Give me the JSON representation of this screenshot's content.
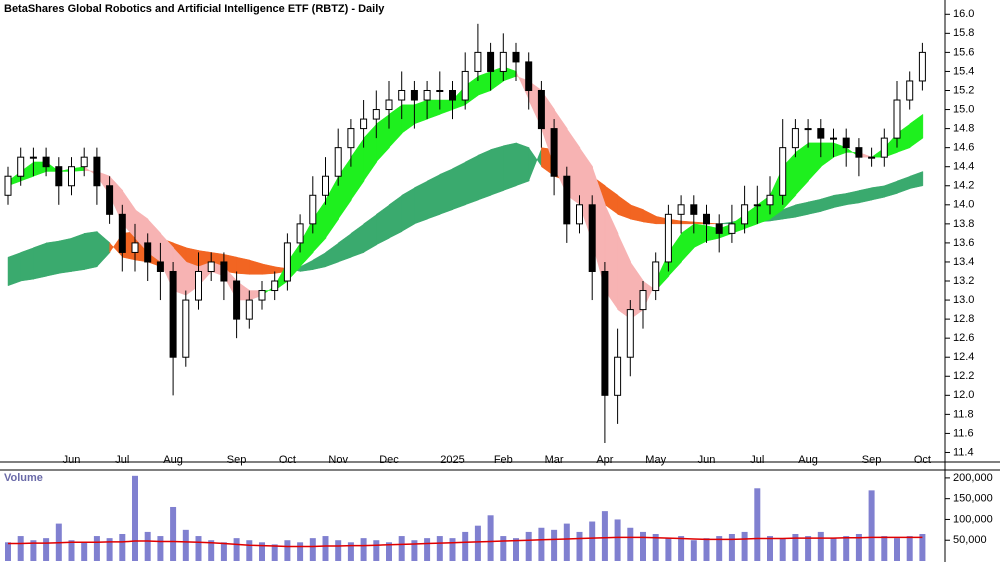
{
  "chart_data": {
    "type": "candlestick",
    "title": "BetaShares Global Robotics and Artificial Intelligence ETF (RBTZ) - Daily",
    "categories": [
      null,
      null,
      null,
      null,
      null,
      "Jun",
      null,
      null,
      null,
      "Jul",
      null,
      null,
      null,
      "Aug",
      null,
      null,
      null,
      null,
      "Sep",
      null,
      null,
      null,
      "Oct",
      null,
      null,
      null,
      "Nov",
      null,
      null,
      null,
      "Dec",
      null,
      null,
      null,
      null,
      "2025",
      null,
      null,
      null,
      "Feb",
      null,
      null,
      null,
      "Mar",
      null,
      null,
      null,
      "Apr",
      null,
      null,
      null,
      "May",
      null,
      null,
      null,
      "Jun",
      null,
      null,
      null,
      "Jul",
      null,
      null,
      null,
      "Aug",
      null,
      null,
      null,
      null,
      "Sep",
      null,
      null,
      null,
      "Oct"
    ],
    "open": [
      14.1,
      14.3,
      14.5,
      14.5,
      14.4,
      14.2,
      14.4,
      14.5,
      14.2,
      13.9,
      13.5,
      13.6,
      13.4,
      13.3,
      12.4,
      13.0,
      13.3,
      13.4,
      13.2,
      12.8,
      13.0,
      13.1,
      13.2,
      13.6,
      13.8,
      14.1,
      14.3,
      14.6,
      14.8,
      14.9,
      15.0,
      15.1,
      15.2,
      15.1,
      15.2,
      15.2,
      15.1,
      15.4,
      15.6,
      15.4,
      15.6,
      15.5,
      15.2,
      14.8,
      14.3,
      13.8,
      14.0,
      13.3,
      12.0,
      12.4,
      12.9,
      13.1,
      13.4,
      13.9,
      14.0,
      13.9,
      13.8,
      13.7,
      13.8,
      14.0,
      14.0,
      14.1,
      14.6,
      14.8,
      14.8,
      14.7,
      14.7,
      14.6,
      14.5,
      14.5,
      14.7,
      15.1,
      15.3
    ],
    "high": [
      14.4,
      14.6,
      14.6,
      14.6,
      14.5,
      14.5,
      14.6,
      14.6,
      14.3,
      14.0,
      13.8,
      13.7,
      13.6,
      13.4,
      13.1,
      13.5,
      13.5,
      13.5,
      13.3,
      13.1,
      13.2,
      13.3,
      13.7,
      13.9,
      14.3,
      14.5,
      14.8,
      14.9,
      15.1,
      15.2,
      15.3,
      15.4,
      15.3,
      15.3,
      15.4,
      15.3,
      15.6,
      15.9,
      15.7,
      15.8,
      15.7,
      15.6,
      15.3,
      14.9,
      14.4,
      14.1,
      14.1,
      13.4,
      12.7,
      13.0,
      13.2,
      13.5,
      14.0,
      14.1,
      14.1,
      14.0,
      13.9,
      14.0,
      14.2,
      14.2,
      14.3,
      14.9,
      14.9,
      14.9,
      14.9,
      14.8,
      14.8,
      14.7,
      14.6,
      14.8,
      15.3,
      15.4,
      15.7
    ],
    "low": [
      14.0,
      14.2,
      14.3,
      14.3,
      14.0,
      14.1,
      14.3,
      14.0,
      13.8,
      13.3,
      13.3,
      13.2,
      13.0,
      12.0,
      12.3,
      12.9,
      13.2,
      13.0,
      12.6,
      12.7,
      12.9,
      13.0,
      13.1,
      13.5,
      13.7,
      14.0,
      14.2,
      14.4,
      14.6,
      14.7,
      14.8,
      14.9,
      14.8,
      14.9,
      15.0,
      14.9,
      15.0,
      15.3,
      15.2,
      15.3,
      15.3,
      15.0,
      14.6,
      14.1,
      13.6,
      13.7,
      13.0,
      11.5,
      11.7,
      12.2,
      12.7,
      13.0,
      13.3,
      13.7,
      13.7,
      13.6,
      13.5,
      13.6,
      13.7,
      13.8,
      13.9,
      14.0,
      14.5,
      14.6,
      14.5,
      14.5,
      14.4,
      14.3,
      14.4,
      14.4,
      14.6,
      15.0,
      15.2
    ],
    "close": [
      14.3,
      14.5,
      14.5,
      14.4,
      14.2,
      14.4,
      14.5,
      14.2,
      13.9,
      13.5,
      13.6,
      13.4,
      13.3,
      12.4,
      13.0,
      13.3,
      13.4,
      13.2,
      12.8,
      13.0,
      13.1,
      13.2,
      13.6,
      13.8,
      14.1,
      14.3,
      14.6,
      14.8,
      14.9,
      15.0,
      15.1,
      15.2,
      15.1,
      15.2,
      15.2,
      15.1,
      15.4,
      15.6,
      15.4,
      15.6,
      15.5,
      15.2,
      14.8,
      14.3,
      13.8,
      14.0,
      13.3,
      12.0,
      12.4,
      12.9,
      13.1,
      13.4,
      13.9,
      14.0,
      13.9,
      13.8,
      13.7,
      13.8,
      14.0,
      14.0,
      14.1,
      14.6,
      14.8,
      14.8,
      14.7,
      14.7,
      14.6,
      14.5,
      14.5,
      14.7,
      15.1,
      15.3,
      15.6
    ],
    "candle_color": "#000000",
    "ribbons": [
      {
        "fast": [
          13.45,
          13.5,
          13.55,
          13.6,
          13.62,
          13.65,
          13.7,
          13.72,
          13.6,
          13.45,
          13.42,
          13.4,
          13.35,
          13.3,
          13.3,
          13.3,
          13.3,
          13.3,
          13.28,
          13.27,
          13.27,
          13.28,
          13.3,
          13.35,
          13.42,
          13.5,
          13.6,
          13.7,
          13.8,
          13.9,
          14.0,
          14.1,
          14.18,
          14.25,
          14.32,
          14.38,
          14.45,
          14.52,
          14.58,
          14.62,
          14.65,
          14.6,
          14.4,
          14.3,
          14.25,
          14.2,
          14.1,
          14.0,
          13.9,
          13.85,
          13.82,
          13.8,
          13.8,
          13.8,
          13.8,
          13.8,
          13.8,
          13.82,
          13.85,
          13.88,
          13.92,
          13.95,
          14.0,
          14.03,
          14.06,
          14.1,
          14.12,
          14.15,
          14.18,
          14.2,
          14.25,
          14.3,
          14.35
        ],
        "slow": [
          13.15,
          13.2,
          13.22,
          13.25,
          13.28,
          13.3,
          13.32,
          13.35,
          13.5,
          13.7,
          13.72,
          13.7,
          13.65,
          13.6,
          13.55,
          13.52,
          13.5,
          13.48,
          13.45,
          13.42,
          13.38,
          13.35,
          13.33,
          13.3,
          13.32,
          13.35,
          13.4,
          13.45,
          13.5,
          13.58,
          13.65,
          13.72,
          13.8,
          13.85,
          13.9,
          13.95,
          14.0,
          14.05,
          14.1,
          14.15,
          14.2,
          14.25,
          14.6,
          14.58,
          14.5,
          14.4,
          14.3,
          14.2,
          14.1,
          14.0,
          13.95,
          13.88,
          13.85,
          13.83,
          13.82,
          13.81,
          13.8,
          13.8,
          13.8,
          13.82,
          13.83,
          13.85,
          13.87,
          13.9,
          13.93,
          13.97,
          14.0,
          14.02,
          14.05,
          14.08,
          14.12,
          14.17,
          14.2
        ],
        "up_color": "#3aaa6e",
        "down_color": "#f26522"
      },
      {
        "fast": [
          14.25,
          14.35,
          14.45,
          14.45,
          14.35,
          14.38,
          14.4,
          14.3,
          14.1,
          13.8,
          13.65,
          13.5,
          13.4,
          13.1,
          13.05,
          13.15,
          13.3,
          13.25,
          13.0,
          13.0,
          13.05,
          13.15,
          13.4,
          13.6,
          13.85,
          14.05,
          14.3,
          14.5,
          14.7,
          14.85,
          14.95,
          15.05,
          15.05,
          15.1,
          15.1,
          15.1,
          15.25,
          15.35,
          15.4,
          15.45,
          15.4,
          15.1,
          14.8,
          14.4,
          14.1,
          14.0,
          13.6,
          13.1,
          12.9,
          12.8,
          12.9,
          13.2,
          13.5,
          13.7,
          13.8,
          13.78,
          13.75,
          13.8,
          13.9,
          14.0,
          14.1,
          14.4,
          14.55,
          14.65,
          14.65,
          14.65,
          14.6,
          14.5,
          14.5,
          14.6,
          14.75,
          14.85,
          14.95
        ],
        "slow": [
          14.2,
          14.25,
          14.3,
          14.35,
          14.35,
          14.35,
          14.36,
          14.35,
          14.3,
          14.15,
          13.95,
          13.85,
          13.7,
          13.55,
          13.4,
          13.35,
          13.4,
          13.35,
          13.2,
          13.1,
          13.1,
          13.1,
          13.2,
          13.35,
          13.5,
          13.65,
          13.85,
          14.05,
          14.25,
          14.45,
          14.6,
          14.75,
          14.85,
          14.9,
          14.95,
          15.0,
          15.05,
          15.15,
          15.2,
          15.3,
          15.35,
          15.3,
          15.2,
          15.0,
          14.8,
          14.6,
          14.4,
          14.0,
          13.7,
          13.4,
          13.2,
          13.1,
          13.25,
          13.4,
          13.55,
          13.62,
          13.65,
          13.7,
          13.75,
          13.8,
          13.85,
          13.95,
          14.1,
          14.25,
          14.4,
          14.5,
          14.55,
          14.55,
          14.5,
          14.5,
          14.55,
          14.6,
          14.7
        ],
        "up_color": "#1ef01e",
        "down_color": "#f7b3b3"
      }
    ],
    "ylim": [
      11.3,
      16.15
    ],
    "yticks": [
      11.4,
      11.6,
      11.8,
      {
        "value": 12.0,
        "label": "12.0"
      },
      12.2,
      12.4,
      12.6,
      12.8,
      {
        "value": 13.0,
        "label": "13.0"
      },
      13.2,
      13.4,
      13.6,
      13.8,
      {
        "value": 14.0,
        "label": "14.0"
      },
      14.2,
      14.4,
      14.6,
      14.8,
      {
        "value": 15.0,
        "label": "15.0"
      },
      15.2,
      15.4,
      15.6,
      15.8,
      {
        "value": 16.0,
        "label": "16.0"
      }
    ],
    "volume": {
      "label": "Volume",
      "color": "#8080d0",
      "ma_color": "#e00000",
      "values": [
        45000,
        60000,
        50000,
        55000,
        90000,
        50000,
        45000,
        60000,
        55000,
        65000,
        205000,
        70000,
        60000,
        130000,
        75000,
        60000,
        50000,
        45000,
        55000,
        50000,
        45000,
        40000,
        50000,
        45000,
        55000,
        60000,
        50000,
        45000,
        55000,
        50000,
        45000,
        60000,
        50000,
        55000,
        60000,
        55000,
        70000,
        85000,
        110000,
        60000,
        55000,
        70000,
        80000,
        75000,
        90000,
        70000,
        95000,
        120000,
        100000,
        80000,
        70000,
        65000,
        55000,
        60000,
        50000,
        55000,
        60000,
        65000,
        70000,
        175000,
        60000,
        55000,
        65000,
        60000,
        70000,
        55000,
        60000,
        65000,
        170000,
        60000,
        55000,
        60000,
        65000
      ],
      "ma": [
        42000,
        42000,
        43000,
        43000,
        44000,
        45000,
        45000,
        45000,
        46000,
        46000,
        48000,
        48000,
        47000,
        47000,
        46000,
        45000,
        44000,
        42000,
        40000,
        38000,
        37000,
        36000,
        35000,
        35000,
        35000,
        36000,
        36000,
        37000,
        37000,
        38000,
        39000,
        40000,
        41000,
        42000,
        43000,
        44000,
        45000,
        46000,
        47000,
        48000,
        49000,
        50000,
        51000,
        52000,
        53000,
        54000,
        55000,
        56000,
        57000,
        57000,
        57000,
        56000,
        55000,
        54000,
        53000,
        52000,
        52000,
        52000,
        53000,
        54000,
        54000,
        54000,
        55000,
        55000,
        55000,
        55000,
        56000,
        56000,
        57000,
        57000,
        57000,
        57000,
        57000
      ],
      "ylim": [
        0,
        219000
      ],
      "yticks": [
        {
          "value": 50000,
          "label": "50,000"
        },
        {
          "value": 100000,
          "label": "100,000"
        },
        {
          "value": 150000,
          "label": "150,000"
        },
        {
          "value": 200000,
          "label": "200,000"
        }
      ]
    }
  }
}
